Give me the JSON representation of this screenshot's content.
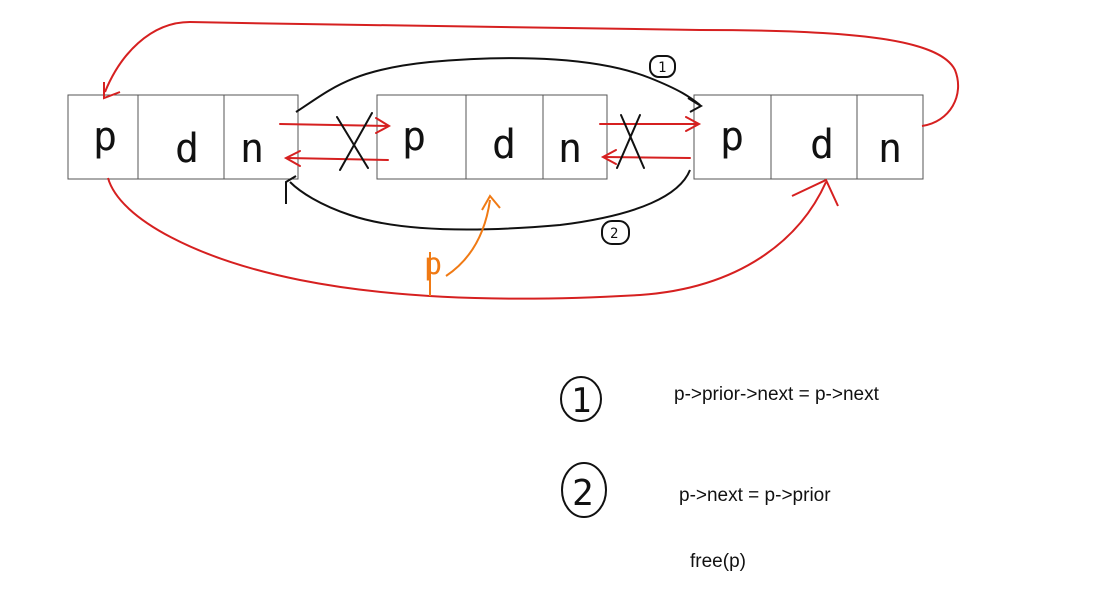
{
  "nodes": [
    {
      "fields": [
        "p",
        "d",
        "n"
      ]
    },
    {
      "fields": [
        "p",
        "d",
        "n"
      ]
    },
    {
      "fields": [
        "p",
        "d",
        "n"
      ]
    }
  ],
  "step_markers": [
    "1",
    "2"
  ],
  "pointer_label": "p",
  "steps": [
    {
      "marker": "1",
      "code": "p->prior->next = p->next"
    },
    {
      "marker": "2",
      "code": "p->next = p->prior"
    }
  ],
  "final_code": "free(p)",
  "colors": {
    "red": "#d62020",
    "black": "#111111",
    "orange": "#f07a14",
    "border": "#555555"
  }
}
